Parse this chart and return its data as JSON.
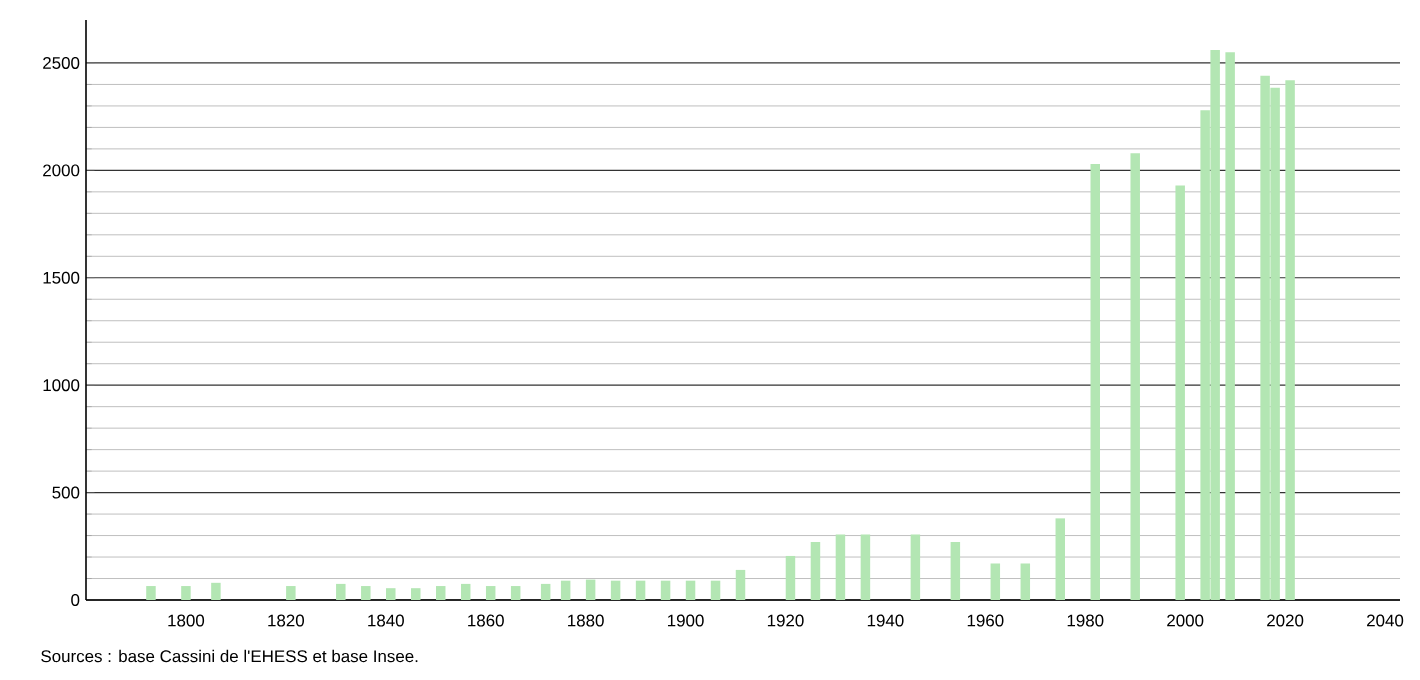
{
  "chart_data": {
    "type": "bar",
    "x": [
      1793,
      1800,
      1806,
      1821,
      1831,
      1836,
      1841,
      1846,
      1851,
      1856,
      1861,
      1866,
      1872,
      1876,
      1881,
      1886,
      1891,
      1896,
      1901,
      1906,
      1911,
      1921,
      1926,
      1931,
      1936,
      1946,
      1954,
      1962,
      1968,
      1975,
      1982,
      1990,
      1999,
      2004,
      2006,
      2009,
      2016,
      2018,
      2021
    ],
    "values": [
      65,
      65,
      80,
      65,
      75,
      65,
      55,
      55,
      65,
      75,
      65,
      65,
      75,
      90,
      95,
      90,
      90,
      90,
      90,
      90,
      140,
      205,
      270,
      305,
      305,
      305,
      270,
      170,
      170,
      380,
      2030,
      2080,
      1930,
      2280,
      2560,
      2550,
      2440,
      2385,
      2420
    ],
    "color": "#b3e6b3",
    "xlim": [
      1780,
      2043
    ],
    "xticks": [
      1800,
      1820,
      1840,
      1860,
      1880,
      1900,
      1920,
      1940,
      1960,
      1980,
      2000,
      2020,
      2040
    ],
    "ylim": [
      0,
      2700
    ],
    "yticks": [
      0,
      500,
      1000,
      1500,
      2000,
      2500
    ],
    "grid": "y",
    "annotations": [
      "Sources : base Cassini de l'EHESS et base Insee."
    ]
  }
}
